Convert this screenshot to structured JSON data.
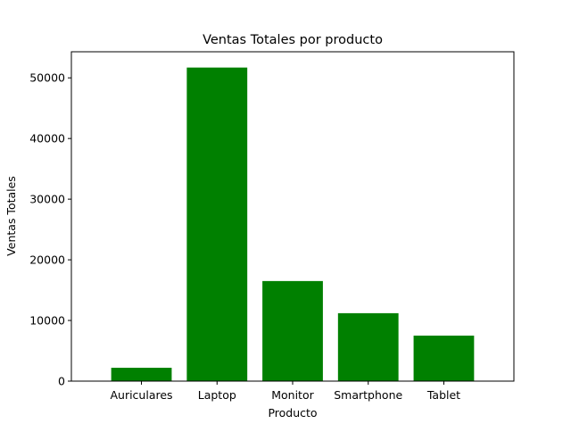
{
  "chart_data": {
    "type": "bar",
    "title": "Ventas Totales por producto",
    "xlabel": "Producto",
    "ylabel": "Ventas Totales",
    "categories": [
      "Auriculares",
      "Laptop",
      "Monitor",
      "Smartphone",
      "Tablet"
    ],
    "values": [
      2200,
      51700,
      16500,
      11200,
      7500
    ],
    "ylim": [
      0,
      54300
    ],
    "yticks": [
      0,
      10000,
      20000,
      30000,
      40000,
      50000
    ],
    "bar_color": "#008000",
    "grid": false,
    "legend": "none"
  }
}
